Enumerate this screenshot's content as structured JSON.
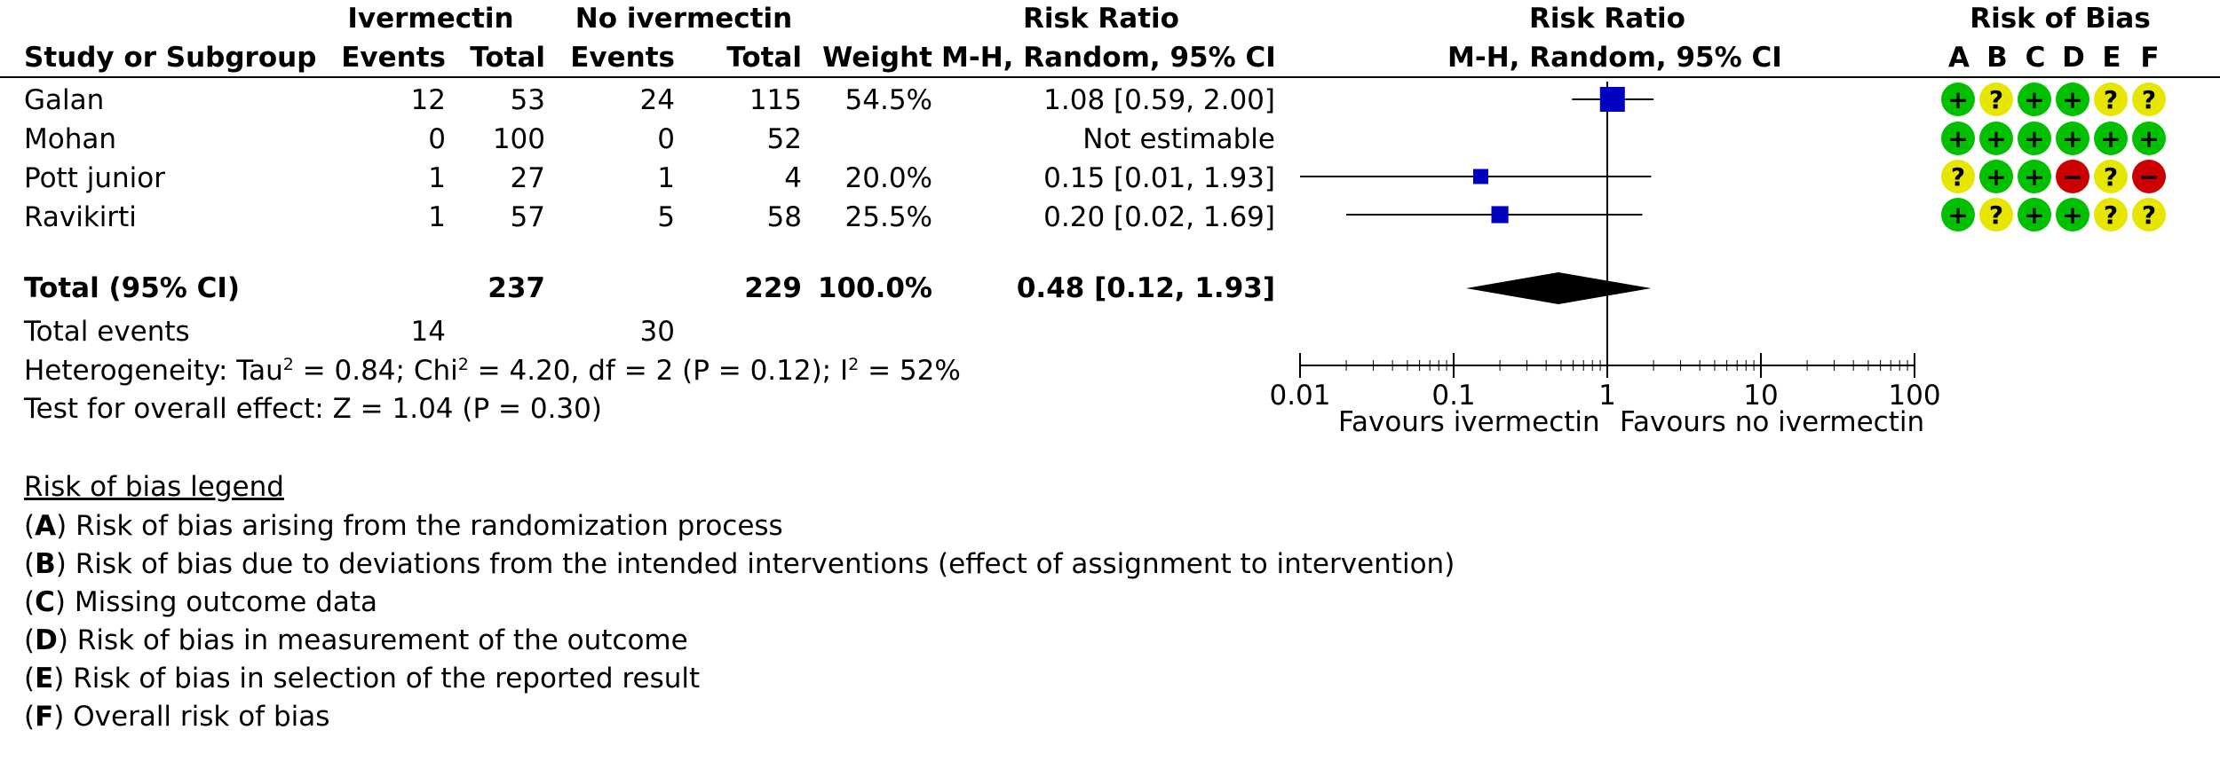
{
  "header": {
    "group1": "Ivermectin",
    "group2": "No ivermectin",
    "study_col": "Study or Subgroup",
    "events": "Events",
    "total": "Total",
    "weight": "Weight",
    "rr_title": "Risk Ratio",
    "rr_method": "M-H, Random, 95% CI",
    "plot_title": "Risk Ratio",
    "plot_method": "M-H, Random, 95% CI",
    "rob_title": "Risk of Bias",
    "rob_letters": [
      "A",
      "B",
      "C",
      "D",
      "E",
      "F"
    ]
  },
  "studies": [
    {
      "name": "Galan",
      "e1": "12",
      "t1": "53",
      "e2": "24",
      "t2": "115",
      "weight": "54.5%",
      "ci_text": "1.08 [0.59, 2.00]",
      "rob": [
        "+",
        "?",
        "+",
        "+",
        "?",
        "?"
      ]
    },
    {
      "name": "Mohan",
      "e1": "0",
      "t1": "100",
      "e2": "0",
      "t2": "52",
      "weight": "",
      "ci_text": "Not estimable",
      "rob": [
        "+",
        "+",
        "+",
        "+",
        "+",
        "+"
      ]
    },
    {
      "name": "Pott junior",
      "e1": "1",
      "t1": "27",
      "e2": "1",
      "t2": "4",
      "weight": "20.0%",
      "ci_text": "0.15 [0.01, 1.93]",
      "rob": [
        "?",
        "+",
        "+",
        "-",
        "?",
        "-"
      ]
    },
    {
      "name": "Ravikirti",
      "e1": "1",
      "t1": "57",
      "e2": "5",
      "t2": "58",
      "weight": "25.5%",
      "ci_text": "0.20 [0.02, 1.69]",
      "rob": [
        "+",
        "?",
        "+",
        "+",
        "?",
        "?"
      ]
    }
  ],
  "total": {
    "label": "Total (95% CI)",
    "t1": "237",
    "t2": "229",
    "weight": "100.0%",
    "ci_text": "0.48 [0.12, 1.93]"
  },
  "total_events": {
    "label": "Total events",
    "e1": "14",
    "e2": "30"
  },
  "heterogeneity": {
    "p1": "Heterogeneity: Tau",
    "p2": " = 0.84; Chi",
    "p3": " = 4.20, df = 2 (P = 0.12); I",
    "p4": " = 52%",
    "sup": "2"
  },
  "overall_effect": "Test for overall effect: Z = 1.04 (P = 0.30)",
  "legend": {
    "title": "Risk of bias legend",
    "items": [
      {
        "letter": "A",
        "text": " Risk of bias arising from the randomization process"
      },
      {
        "letter": "B",
        "text": " Risk of bias due to deviations from the intended interventions (effect of assignment to intervention)"
      },
      {
        "letter": "C",
        "text": " Missing outcome data"
      },
      {
        "letter": "D",
        "text": " Risk of bias in measurement of the outcome"
      },
      {
        "letter": "E",
        "text": " Risk of bias in selection of the reported result"
      },
      {
        "letter": "F",
        "text": " Overall risk of bias"
      }
    ]
  },
  "axis": {
    "left_label": "Favours ivermectin",
    "right_label": "Favours no ivermectin"
  },
  "colors": {
    "study_marker": "#0000c0",
    "low_risk": "#00c000",
    "unclear_risk": "#e6e600",
    "high_risk": "#cc0000",
    "diamond": "#000000"
  },
  "chart_data": {
    "type": "forest",
    "scale": "log",
    "xlim": [
      0.01,
      100
    ],
    "ticks": [
      0.01,
      0.1,
      1,
      10,
      100
    ],
    "tick_labels": [
      "0.01",
      "0.1",
      "1",
      "10",
      "100"
    ],
    "null_value": 1,
    "studies": [
      {
        "name": "Galan",
        "rr": 1.08,
        "lo": 0.59,
        "hi": 2.0,
        "weight": 54.5
      },
      {
        "name": "Mohan",
        "rr": null,
        "lo": null,
        "hi": null,
        "weight": null
      },
      {
        "name": "Pott junior",
        "rr": 0.15,
        "lo": 0.01,
        "hi": 1.93,
        "weight": 20.0
      },
      {
        "name": "Ravikirti",
        "rr": 0.2,
        "lo": 0.02,
        "hi": 1.69,
        "weight": 25.5
      }
    ],
    "pooled": {
      "rr": 0.48,
      "lo": 0.12,
      "hi": 1.93
    }
  }
}
